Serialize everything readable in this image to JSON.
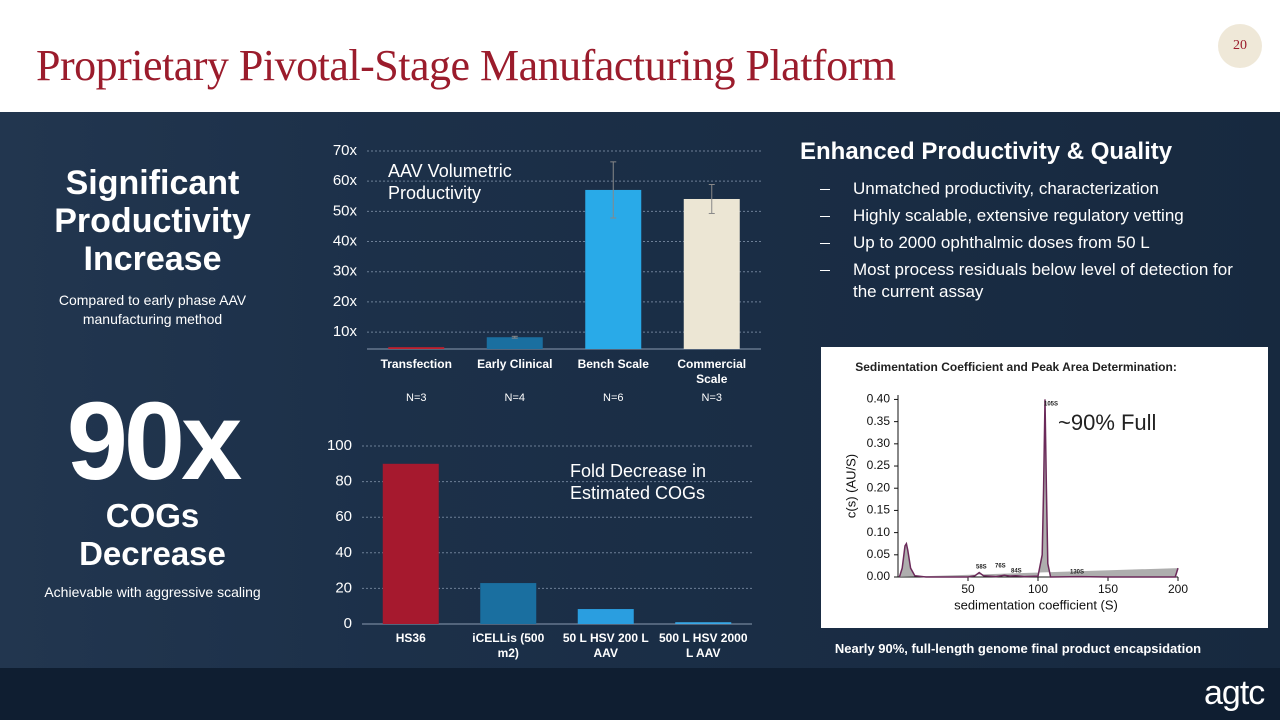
{
  "header": {
    "title": "Proprietary Pivotal-Stage Manufacturing Platform",
    "page_number": "20"
  },
  "left_panel": {
    "heading": "Significant Productivity Increase",
    "subheading": "Compared to early phase AAV manufacturing method",
    "big_number": "90x",
    "big_caption": "COGs Decrease",
    "footnote": "Achievable with aggressive scaling"
  },
  "right_panel": {
    "heading": "Enhanced Productivity & Quality",
    "bullets": [
      "Unmatched productivity, characterization",
      "Highly scalable, extensive regulatory vetting",
      "Up to 2000 ophthalmic doses from 50 L",
      "Most process residuals below level of detection for the current assay"
    ],
    "caption": "Nearly 90%, full-length genome final product encapsidation"
  },
  "logo": "agtc",
  "chart_data": [
    {
      "type": "bar",
      "title": "AAV Volumetric Productivity",
      "categories": [
        "Transfection",
        "Early Clinical",
        "Bench Scale",
        "Commercial Scale"
      ],
      "values": [
        5,
        8.3,
        57.1,
        54.1
      ],
      "errors": [
        null,
        0.3,
        9.3,
        4.8
      ],
      "sample_sizes": [
        "N=3",
        "N=4",
        "N=6",
        "N=3"
      ],
      "colors": [
        "#c0202e",
        "#1a6fa0",
        "#29aae8",
        "#ece6d4"
      ],
      "ylim": [
        4.4,
        70
      ],
      "yticks": [
        {
          "value": 10,
          "label": "10x"
        },
        {
          "value": 20,
          "label": "20x"
        },
        {
          "value": 30,
          "label": "30x"
        },
        {
          "value": 40,
          "label": "40x"
        },
        {
          "value": 50,
          "label": "50x"
        },
        {
          "value": 60,
          "label": "60x"
        },
        {
          "value": 70,
          "label": "70x"
        }
      ],
      "grid": true
    },
    {
      "type": "bar",
      "title": "Fold Decrease in Estimated COGs",
      "categories": [
        "HS36",
        "iCELLis (500 m2)",
        "50 L HSV 200 L AAV",
        "500 L HSV 2000 L AAV"
      ],
      "values": [
        90,
        23,
        8.4,
        1
      ],
      "colors": [
        "#a6192e",
        "#1a6fa0",
        "#2a9ee0",
        "#3aa8e6"
      ],
      "ylim": [
        0,
        100
      ],
      "yticks": [
        0,
        20,
        40,
        60,
        80,
        100
      ],
      "grid": true
    },
    {
      "type": "line",
      "title": "Sedimentation Coefficient and Peak Area Determination:",
      "x_label": "sedimentation coefficient (S)",
      "y_label": "c(s) (AU/S)",
      "x": [
        1,
        3,
        5,
        6,
        7,
        9,
        12,
        20,
        50,
        55,
        58,
        61,
        70,
        76,
        80,
        84,
        90,
        100,
        103,
        104,
        105,
        106,
        107,
        109,
        130,
        150,
        198,
        199,
        200
      ],
      "series": [
        {
          "color": "#6b2a5a",
          "values": [
            0,
            0.02,
            0.07,
            0.075,
            0.06,
            0.02,
            0.003,
            0,
            0,
            0.003,
            0.01,
            0.003,
            0.001,
            0.004,
            0.002,
            0.003,
            0.001,
            0.002,
            0.05,
            0.2,
            0.4,
            0.2,
            0.03,
            0,
            0.001,
            0,
            0,
            0.01,
            0.02
          ]
        }
      ],
      "xlim": [
        0,
        200
      ],
      "ylim": [
        0,
        0.41
      ],
      "xticks": [
        50,
        100,
        150,
        200
      ],
      "yticks": [
        {
          "value": 0,
          "label": "0.00"
        },
        {
          "value": 0.05,
          "label": "0.05"
        },
        {
          "value": 0.1,
          "label": "0.10"
        },
        {
          "value": 0.15,
          "label": "0.15"
        },
        {
          "value": 0.2,
          "label": "0.20"
        },
        {
          "value": 0.25,
          "label": "0.25"
        },
        {
          "value": 0.3,
          "label": "0.30"
        },
        {
          "value": 0.35,
          "label": "0.35"
        },
        {
          "value": 0.4,
          "label": "0.40"
        }
      ],
      "annotations": [
        "~90% Full",
        "105S",
        "58S",
        "76S",
        "84S",
        "130S"
      ]
    }
  ]
}
